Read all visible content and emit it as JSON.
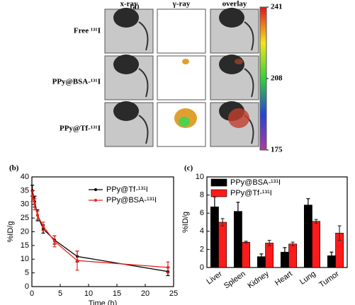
{
  "figure": {
    "label": "(a)",
    "columns": [
      "x-ray",
      "γ-ray",
      "overlay"
    ],
    "rows": [
      "Free ¹³¹I",
      "PPy@BSA-¹³¹I",
      "PPy@Tf-¹³¹I"
    ],
    "colorbar": {
      "ylim": [
        175,
        241
      ],
      "yticks": [
        241,
        208,
        175
      ]
    }
  },
  "chart_data": [
    {
      "type": "line",
      "label": "(b)",
      "x_label": "Time (h)",
      "y_label": "%ID/g",
      "x": [
        0.083,
        0.5,
        1,
        2,
        4,
        8,
        24
      ],
      "series": [
        {
          "name": "PPy@Tf-¹³¹I",
          "color": "#000000",
          "values": [
            35,
            31,
            26,
            21,
            17,
            11,
            5.5
          ],
          "errors": [
            2,
            2,
            2,
            1.5,
            1.5,
            2,
            1.5
          ]
        },
        {
          "name": "PPy@BSA-¹³¹I",
          "color": "#e8231d",
          "values": [
            33,
            30,
            26,
            22,
            16.5,
            9.5,
            7
          ],
          "errors": [
            2,
            2,
            1.5,
            1.5,
            2,
            3.5,
            2
          ]
        }
      ],
      "xlim": [
        0,
        25
      ],
      "xticks": [
        0,
        5,
        10,
        15,
        20,
        25
      ],
      "ylim": [
        0,
        40
      ],
      "yticks": [
        0,
        5,
        10,
        15,
        20,
        25,
        30,
        35,
        40
      ]
    },
    {
      "type": "bar",
      "label": "(c)",
      "y_label": "%ID/g",
      "categories": [
        "Liver",
        "Spleen",
        "Kidney",
        "Heart",
        "Lung",
        "Tumor"
      ],
      "series": [
        {
          "name": "PPy@BSA-¹³¹I",
          "color": "#000000",
          "values": [
            6.7,
            6.2,
            1.2,
            1.7,
            6.9,
            1.3
          ],
          "errors": [
            1.1,
            1.0,
            0.3,
            0.5,
            0.7,
            0.4
          ]
        },
        {
          "name": "PPy@Tf-¹³¹I",
          "color": "#ff1a1a",
          "values": [
            5.0,
            2.8,
            2.7,
            2.6,
            5.1,
            3.8
          ],
          "errors": [
            0.4,
            0.1,
            0.3,
            0.2,
            0.2,
            0.8
          ]
        }
      ],
      "ylim": [
        0,
        10
      ],
      "yticks": [
        0,
        2,
        4,
        6,
        8,
        10
      ]
    }
  ]
}
